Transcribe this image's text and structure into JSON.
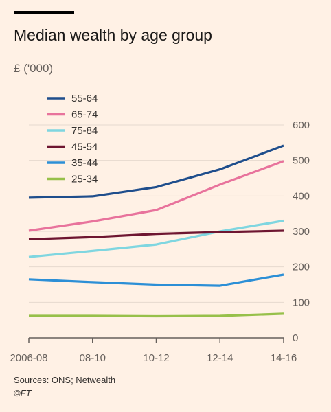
{
  "header": {
    "title": "Median wealth by age group",
    "ylabel": "£ ('000)"
  },
  "footer": {
    "source": "Sources: ONS; Netwealth",
    "copyright": "©FT"
  },
  "chart_data": {
    "type": "line",
    "title": "Median wealth by age group",
    "ylabel": "£ ('000)",
    "xlabel": "",
    "categories": [
      "2006-08",
      "08-10",
      "10-12",
      "12-14",
      "14-16"
    ],
    "ylim": [
      0,
      600
    ],
    "yticks": [
      0,
      100,
      200,
      300,
      400,
      500,
      600
    ],
    "grid": true,
    "legend_position": "top-left",
    "series": [
      {
        "name": "55-64",
        "color": "#1f4e8c",
        "values": [
          395,
          399,
          425,
          475,
          542
        ]
      },
      {
        "name": "65-74",
        "color": "#e8739c",
        "values": [
          302,
          328,
          360,
          432,
          498
        ]
      },
      {
        "name": "75-84",
        "color": "#7fd6e0",
        "values": [
          228,
          245,
          263,
          300,
          330
        ]
      },
      {
        "name": "45-54",
        "color": "#6e1631",
        "values": [
          278,
          284,
          293,
          298,
          302
        ]
      },
      {
        "name": "35-44",
        "color": "#2c8fd6",
        "values": [
          165,
          157,
          150,
          147,
          178
        ]
      },
      {
        "name": "25-34",
        "color": "#97c04a",
        "values": [
          62,
          62,
          61,
          62,
          68
        ]
      }
    ]
  }
}
